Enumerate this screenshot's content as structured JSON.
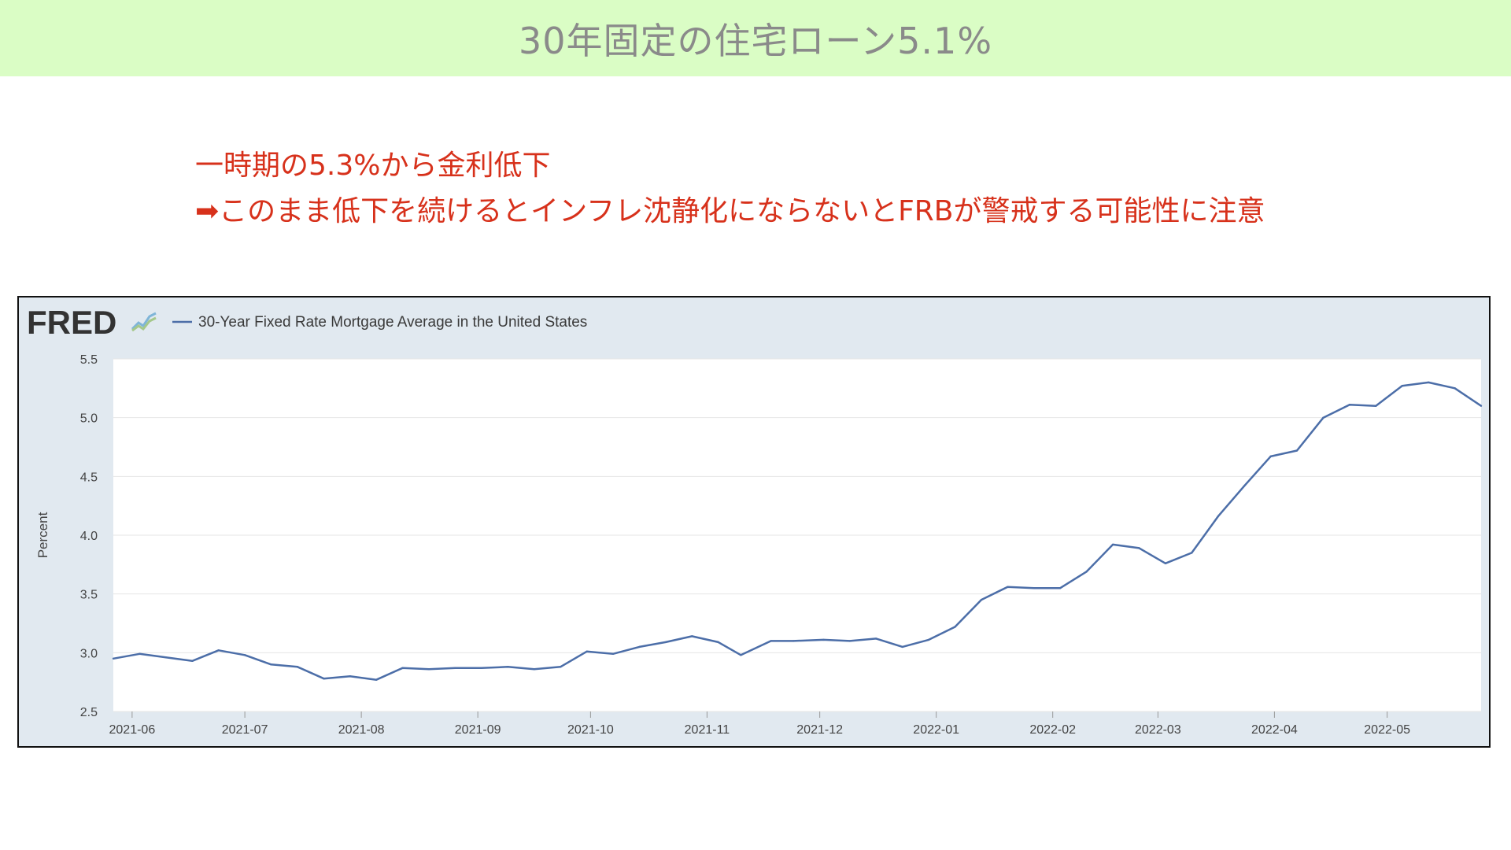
{
  "slide": {
    "title": "30年固定の住宅ローン5.1%",
    "note_line1": "一時期の5.3%から金利低下",
    "note_line2": "➡このまま低下を続けるとインフレ沈静化にならないとFRBが警戒する可能性に注意"
  },
  "colors": {
    "title_bar": "#dafdc5",
    "title_text": "#8a8a8a",
    "note_text": "#d7311b",
    "chart_frame_bg": "#e1e9f0",
    "plot_bg": "#ffffff",
    "series_line": "#4c6ea8"
  },
  "chart_data": {
    "type": "line",
    "logo": "FRED",
    "logo_icon": "fred-graph-icon",
    "legend": "30-Year Fixed Rate Mortgage Average in the United States",
    "ylabel": "Percent",
    "ylim": [
      2.5,
      5.5
    ],
    "yticks": [
      "2.5",
      "3.0",
      "3.5",
      "4.0",
      "4.5",
      "5.0",
      "5.5"
    ],
    "xlim": [
      "2021-05-27",
      "2022-05-26"
    ],
    "xticks": [
      {
        "date": "2021-06-01",
        "label": "2021-06"
      },
      {
        "date": "2021-07-01",
        "label": "2021-07"
      },
      {
        "date": "2021-08-01",
        "label": "2021-08"
      },
      {
        "date": "2021-09-01",
        "label": "2021-09"
      },
      {
        "date": "2021-10-01",
        "label": "2021-10"
      },
      {
        "date": "2021-11-01",
        "label": "2021-11"
      },
      {
        "date": "2021-12-01",
        "label": "2021-12"
      },
      {
        "date": "2022-01-01",
        "label": "2022-01"
      },
      {
        "date": "2022-02-01",
        "label": "2022-02"
      },
      {
        "date": "2022-03-01",
        "label": "2022-03"
      },
      {
        "date": "2022-04-01",
        "label": "2022-04"
      },
      {
        "date": "2022-05-01",
        "label": "2022-05"
      }
    ],
    "grid": true,
    "legend_position": "top-left",
    "series": [
      {
        "name": "30-Year Fixed Rate Mortgage Average in the United States",
        "x": [
          "2021-05-27",
          "2021-06-03",
          "2021-06-10",
          "2021-06-17",
          "2021-06-24",
          "2021-07-01",
          "2021-07-08",
          "2021-07-15",
          "2021-07-22",
          "2021-07-29",
          "2021-08-05",
          "2021-08-12",
          "2021-08-19",
          "2021-08-26",
          "2021-09-02",
          "2021-09-09",
          "2021-09-16",
          "2021-09-23",
          "2021-09-30",
          "2021-10-07",
          "2021-10-14",
          "2021-10-21",
          "2021-10-28",
          "2021-11-04",
          "2021-11-10",
          "2021-11-18",
          "2021-11-24",
          "2021-12-02",
          "2021-12-09",
          "2021-12-16",
          "2021-12-23",
          "2021-12-30",
          "2022-01-06",
          "2022-01-13",
          "2022-01-20",
          "2022-01-27",
          "2022-02-03",
          "2022-02-10",
          "2022-02-17",
          "2022-02-24",
          "2022-03-03",
          "2022-03-10",
          "2022-03-17",
          "2022-03-24",
          "2022-03-31",
          "2022-04-07",
          "2022-04-14",
          "2022-04-21",
          "2022-04-28",
          "2022-05-05",
          "2022-05-12",
          "2022-05-19",
          "2022-05-26"
        ],
        "values": [
          2.95,
          2.99,
          2.96,
          2.93,
          3.02,
          2.98,
          2.9,
          2.88,
          2.78,
          2.8,
          2.77,
          2.87,
          2.86,
          2.87,
          2.87,
          2.88,
          2.86,
          2.88,
          3.01,
          2.99,
          3.05,
          3.09,
          3.14,
          3.09,
          2.98,
          3.1,
          3.1,
          3.11,
          3.1,
          3.12,
          3.05,
          3.11,
          3.22,
          3.45,
          3.56,
          3.55,
          3.55,
          3.69,
          3.92,
          3.89,
          3.76,
          3.85,
          4.16,
          4.42,
          4.67,
          4.72,
          5.0,
          5.11,
          5.1,
          5.27,
          5.3,
          5.25,
          5.1
        ]
      }
    ]
  }
}
